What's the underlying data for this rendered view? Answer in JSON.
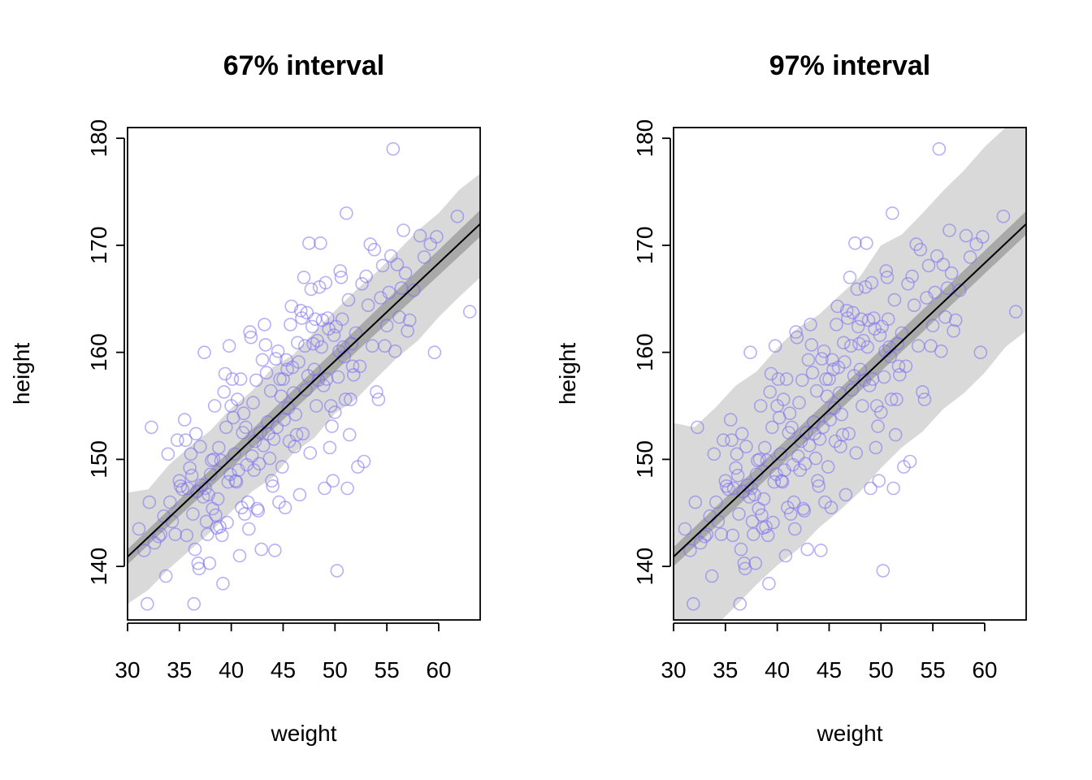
{
  "chart_data": [
    {
      "type": "scatter",
      "title": "67% interval",
      "xlabel": "weight",
      "ylabel": "height",
      "xlim": [
        30,
        64
      ],
      "ylim": [
        135,
        181
      ],
      "xticks": [
        "30",
        "35",
        "40",
        "45",
        "50",
        "55",
        "60"
      ],
      "yticks": [
        "140",
        "150",
        "160",
        "170",
        "180"
      ],
      "regression_line": {
        "x": [
          30,
          64
        ],
        "y": [
          140.9,
          172.0
        ]
      },
      "mean_band": {
        "x": [
          30,
          64
        ],
        "lower": [
          140.2,
          170.8
        ],
        "upper": [
          141.6,
          173.3
        ]
      },
      "prediction_band": {
        "x": [
          30,
          32,
          34,
          36,
          38,
          40,
          42,
          44,
          46,
          48,
          50,
          52,
          54,
          56,
          58,
          60,
          62,
          64
        ],
        "lower": [
          136.5,
          137.8,
          139.8,
          141.5,
          143.2,
          145.1,
          147.0,
          148.3,
          150.6,
          152.0,
          154.3,
          155.6,
          157.6,
          159.5,
          161.1,
          163.3,
          165.2,
          167.0
        ],
        "upper": [
          146.9,
          147.2,
          149.5,
          151.2,
          152.7,
          154.8,
          156.4,
          158.6,
          159.8,
          161.9,
          163.9,
          165.8,
          167.5,
          169.4,
          171.4,
          173.0,
          175.2,
          176.7
        ]
      }
    },
    {
      "type": "scatter",
      "title": "97% interval",
      "xlabel": "weight",
      "ylabel": "height",
      "xlim": [
        30,
        64
      ],
      "ylim": [
        135,
        181
      ],
      "xticks": [
        "30",
        "35",
        "40",
        "45",
        "50",
        "55",
        "60"
      ],
      "yticks": [
        "140",
        "150",
        "160",
        "170",
        "180"
      ],
      "regression_line": {
        "x": [
          30,
          64
        ],
        "y": [
          140.9,
          172.0
        ]
      },
      "mean_band": {
        "x": [
          30,
          64
        ],
        "lower": [
          140.0,
          171.0
        ],
        "upper": [
          141.8,
          173.2
        ]
      },
      "prediction_band": {
        "x": [
          30,
          32,
          34,
          36,
          38,
          40,
          42,
          44,
          46,
          48,
          50,
          52,
          54,
          56,
          58,
          60,
          62,
          64
        ],
        "lower": [
          131.0,
          132.6,
          134.4,
          136.3,
          138.3,
          140.1,
          141.6,
          143.6,
          145.2,
          147.0,
          149.2,
          151.1,
          152.6,
          154.7,
          156.2,
          158.1,
          160.5,
          162.0
        ],
        "upper": [
          153.4,
          153.0,
          154.8,
          156.9,
          158.2,
          160.4,
          162.3,
          163.5,
          165.3,
          167.1,
          170.0,
          171.0,
          173.0,
          175.1,
          177.0,
          179.2,
          181.0,
          182.0
        ]
      }
    }
  ],
  "points": [
    [
      31.1,
      143.5
    ],
    [
      31.6,
      141.5
    ],
    [
      31.9,
      136.5
    ],
    [
      32.1,
      146.0
    ],
    [
      32.3,
      153.0
    ],
    [
      32.6,
      142.2
    ],
    [
      33.0,
      142.8
    ],
    [
      33.2,
      143.0
    ],
    [
      33.5,
      144.7
    ],
    [
      33.7,
      139.1
    ],
    [
      33.9,
      150.5
    ],
    [
      34.1,
      146.0
    ],
    [
      34.3,
      144.2
    ],
    [
      34.6,
      143.0
    ],
    [
      34.8,
      151.8
    ],
    [
      35.0,
      148.0
    ],
    [
      35.1,
      147.5
    ],
    [
      35.3,
      147.2
    ],
    [
      35.5,
      153.7
    ],
    [
      35.6,
      151.8
    ],
    [
      35.7,
      142.9
    ],
    [
      35.8,
      147.3
    ],
    [
      36.0,
      149.2
    ],
    [
      36.1,
      150.5
    ],
    [
      36.2,
      148.5
    ],
    [
      36.3,
      144.9
    ],
    [
      36.4,
      136.5
    ],
    [
      36.5,
      141.6
    ],
    [
      36.6,
      152.4
    ],
    [
      36.7,
      147.0
    ],
    [
      36.8,
      140.3
    ],
    [
      36.9,
      139.8
    ],
    [
      37.0,
      151.2
    ],
    [
      37.1,
      147.6
    ],
    [
      37.3,
      146.5
    ],
    [
      37.4,
      160.0
    ],
    [
      37.5,
      147.3
    ],
    [
      37.6,
      144.2
    ],
    [
      37.7,
      143.0
    ],
    [
      37.8,
      146.7
    ],
    [
      37.9,
      140.3
    ],
    [
      38.0,
      148.6
    ],
    [
      38.1,
      149.9
    ],
    [
      38.2,
      145.4
    ],
    [
      38.3,
      150.0
    ],
    [
      38.4,
      155.0
    ],
    [
      38.5,
      144.8
    ],
    [
      38.6,
      143.6
    ],
    [
      38.7,
      146.3
    ],
    [
      38.8,
      151.1
    ],
    [
      38.9,
      143.7
    ],
    [
      39.0,
      149.9
    ],
    [
      39.1,
      142.9
    ],
    [
      39.2,
      138.4
    ],
    [
      39.3,
      156.3
    ],
    [
      39.4,
      158.0
    ],
    [
      39.5,
      153.0
    ],
    [
      39.6,
      144.1
    ],
    [
      39.7,
      147.9
    ],
    [
      39.8,
      160.6
    ],
    [
      39.9,
      148.6
    ],
    [
      40.0,
      155.0
    ],
    [
      40.1,
      157.5
    ],
    [
      40.2,
      153.9
    ],
    [
      40.3,
      150.5
    ],
    [
      40.4,
      148.0
    ],
    [
      40.5,
      147.9
    ],
    [
      40.6,
      155.6
    ],
    [
      40.7,
      149.0
    ],
    [
      40.8,
      141.0
    ],
    [
      40.9,
      157.5
    ],
    [
      41.0,
      145.5
    ],
    [
      41.1,
      152.5
    ],
    [
      41.2,
      154.3
    ],
    [
      41.3,
      144.9
    ],
    [
      41.4,
      153.0
    ],
    [
      41.5,
      149.5
    ],
    [
      41.6,
      146.0
    ],
    [
      41.7,
      143.5
    ],
    [
      41.8,
      161.9
    ],
    [
      41.9,
      161.4
    ],
    [
      42.0,
      150.3
    ],
    [
      42.1,
      155.3
    ],
    [
      42.2,
      149.0
    ],
    [
      42.3,
      151.7
    ],
    [
      42.4,
      157.4
    ],
    [
      42.5,
      145.4
    ],
    [
      42.6,
      145.2
    ],
    [
      42.7,
      149.6
    ],
    [
      42.8,
      152.5
    ],
    [
      42.9,
      141.6
    ],
    [
      43.0,
      159.3
    ],
    [
      43.1,
      151.3
    ],
    [
      43.2,
      162.6
    ],
    [
      43.3,
      160.7
    ],
    [
      43.4,
      158.1
    ],
    [
      43.5,
      153.5
    ],
    [
      43.6,
      152.4
    ],
    [
      43.7,
      150.1
    ],
    [
      43.8,
      156.4
    ],
    [
      43.9,
      148.0
    ],
    [
      44.0,
      147.5
    ],
    [
      44.1,
      151.9
    ],
    [
      44.2,
      141.5
    ],
    [
      44.3,
      159.4
    ],
    [
      44.4,
      153.0
    ],
    [
      44.5,
      160.1
    ],
    [
      44.6,
      146.0
    ],
    [
      44.7,
      157.5
    ],
    [
      44.8,
      155.9
    ],
    [
      44.9,
      149.3
    ],
    [
      45.0,
      157.5
    ],
    [
      45.1,
      153.7
    ],
    [
      45.2,
      145.5
    ],
    [
      45.3,
      159.3
    ],
    [
      45.4,
      158.4
    ],
    [
      45.5,
      154.8
    ],
    [
      45.6,
      151.7
    ],
    [
      45.7,
      162.6
    ],
    [
      45.8,
      164.3
    ],
    [
      45.9,
      158.6
    ],
    [
      46.0,
      156.2
    ],
    [
      46.1,
      151.2
    ],
    [
      46.2,
      154.2
    ],
    [
      46.3,
      152.3
    ],
    [
      46.4,
      160.9
    ],
    [
      46.5,
      159.1
    ],
    [
      46.6,
      146.7
    ],
    [
      46.7,
      163.9
    ],
    [
      46.8,
      163.2
    ],
    [
      46.9,
      152.4
    ],
    [
      47.0,
      167.0
    ],
    [
      47.1,
      160.6
    ],
    [
      47.2,
      156.5
    ],
    [
      47.3,
      163.7
    ],
    [
      47.4,
      157.8
    ],
    [
      47.5,
      170.2
    ],
    [
      47.6,
      150.6
    ],
    [
      47.7,
      165.9
    ],
    [
      47.8,
      162.4
    ],
    [
      47.9,
      160.8
    ],
    [
      48.0,
      158.4
    ],
    [
      48.1,
      163.1
    ],
    [
      48.2,
      155.0
    ],
    [
      48.3,
      161.1
    ],
    [
      48.4,
      157.4
    ],
    [
      48.5,
      166.1
    ],
    [
      48.6,
      170.2
    ],
    [
      48.7,
      160.5
    ],
    [
      48.8,
      163.0
    ],
    [
      48.9,
      156.9
    ],
    [
      49.0,
      147.3
    ],
    [
      49.1,
      166.5
    ],
    [
      49.2,
      157.5
    ],
    [
      49.3,
      163.2
    ],
    [
      49.4,
      162.2
    ],
    [
      49.5,
      151.1
    ],
    [
      49.6,
      155.0
    ],
    [
      49.7,
      153.1
    ],
    [
      49.8,
      148.0
    ],
    [
      49.9,
      161.6
    ],
    [
      50.0,
      154.4
    ],
    [
      50.1,
      162.4
    ],
    [
      50.2,
      139.6
    ],
    [
      50.3,
      157.7
    ],
    [
      50.4,
      160.1
    ],
    [
      50.5,
      167.6
    ],
    [
      50.6,
      167.0
    ],
    [
      50.7,
      163.1
    ],
    [
      50.8,
      160.5
    ],
    [
      50.9,
      159.6
    ],
    [
      51.0,
      155.6
    ],
    [
      51.1,
      173.0
    ],
    [
      51.2,
      147.3
    ],
    [
      51.3,
      164.9
    ],
    [
      51.4,
      152.3
    ],
    [
      51.5,
      155.6
    ],
    [
      51.6,
      160.8
    ],
    [
      51.7,
      158.7
    ],
    [
      51.8,
      157.9
    ],
    [
      52.0,
      161.8
    ],
    [
      52.2,
      149.3
    ],
    [
      52.4,
      158.7
    ],
    [
      52.6,
      166.4
    ],
    [
      52.8,
      149.8
    ],
    [
      53.0,
      167.1
    ],
    [
      53.2,
      164.4
    ],
    [
      53.4,
      170.1
    ],
    [
      53.6,
      160.6
    ],
    [
      53.8,
      169.6
    ],
    [
      54.0,
      156.3
    ],
    [
      54.2,
      155.6
    ],
    [
      54.4,
      165.1
    ],
    [
      54.6,
      168.1
    ],
    [
      54.8,
      160.6
    ],
    [
      55.0,
      162.5
    ],
    [
      55.2,
      165.6
    ],
    [
      55.4,
      169.0
    ],
    [
      55.6,
      179.0
    ],
    [
      55.8,
      160.1
    ],
    [
      56.0,
      168.2
    ],
    [
      56.2,
      163.3
    ],
    [
      56.4,
      166.0
    ],
    [
      56.6,
      171.4
    ],
    [
      56.8,
      167.4
    ],
    [
      57.0,
      162.0
    ],
    [
      57.2,
      163.0
    ],
    [
      57.6,
      165.8
    ],
    [
      58.2,
      170.9
    ],
    [
      58.6,
      168.9
    ],
    [
      59.2,
      170.1
    ],
    [
      59.6,
      160.0
    ],
    [
      59.8,
      170.8
    ],
    [
      61.8,
      172.7
    ],
    [
      63.0,
      163.8
    ]
  ],
  "style": {
    "point_color": "#7a6ff0",
    "prediction_band_color": "#d9d9d9",
    "mean_band_color": "#a9a9a9",
    "line_color": "#000000"
  }
}
